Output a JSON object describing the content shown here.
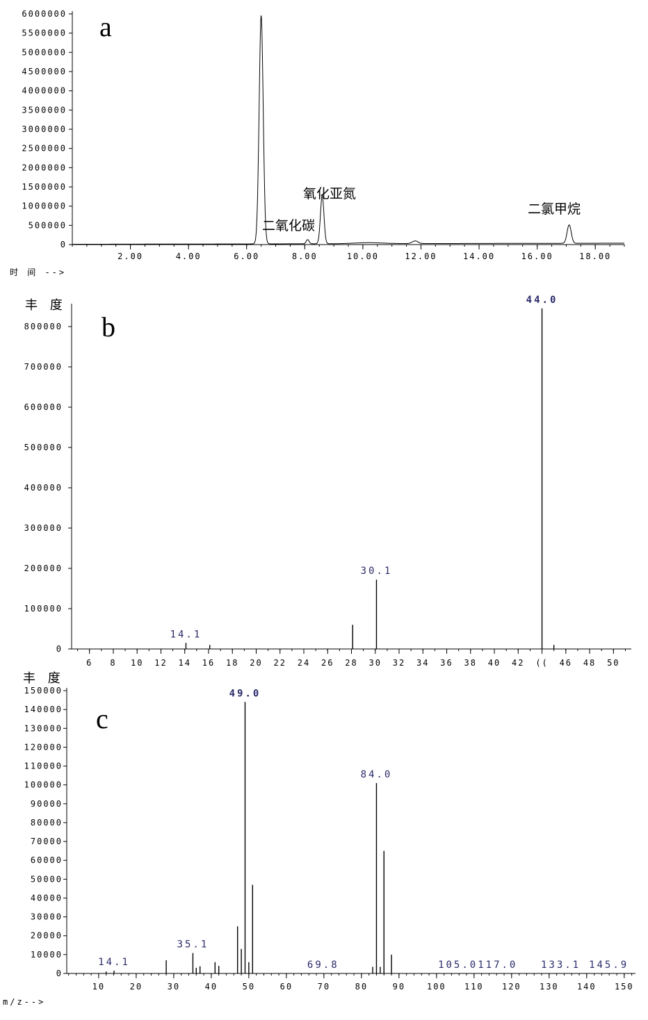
{
  "chart_data": [
    {
      "panel": "a",
      "type": "line",
      "xlabel": "时 间 -->",
      "xlim": [
        0.0,
        19.0
      ],
      "ylim": [
        0,
        6000000
      ],
      "x_ticks": [
        2,
        4,
        6,
        8,
        10,
        12,
        14,
        16,
        18
      ],
      "x_tick_labels": [
        "2.00",
        "4.00",
        "6.00",
        "8.00",
        "10.00",
        "12.00",
        "14.00",
        "16.00",
        "18.00"
      ],
      "y_ticks": [
        0,
        500000,
        1000000,
        1500000,
        2000000,
        2500000,
        3000000,
        3500000,
        4000000,
        4500000,
        5000000,
        5500000,
        6000000
      ],
      "y_tick_labels": [
        "0",
        "500000",
        "1000000",
        "1500000",
        "2000000",
        "2500000",
        "3000000",
        "3500000",
        "4000000",
        "4500000",
        "5000000",
        "5500000",
        "6000000"
      ],
      "series": [
        {
          "peaks": [
            {
              "center": 6.5,
              "height": 5950000,
              "width": 0.07
            },
            {
              "center": 8.1,
              "height": 110000,
              "width": 0.05
            },
            {
              "center": 8.6,
              "height": 1250000,
              "width": 0.06
            },
            {
              "center": 10.2,
              "height": 25000,
              "width": 0.5
            },
            {
              "center": 11.8,
              "height": 70000,
              "width": 0.1
            },
            {
              "center": 17.1,
              "height": 480000,
              "width": 0.07
            }
          ]
        }
      ],
      "annotations": [
        {
          "text": "氧化亚氮",
          "x": 8.6
        },
        {
          "text": "二氧化碳",
          "x": 8.0
        },
        {
          "text": "二氯甲烷",
          "x": 17.1
        }
      ]
    },
    {
      "panel": "b",
      "type": "bar",
      "ylabel": "丰 度",
      "xlim": [
        4.5,
        51.5
      ],
      "ylim": [
        0,
        850000
      ],
      "x_ticks": [
        6,
        8,
        10,
        12,
        14,
        16,
        18,
        20,
        22,
        24,
        26,
        28,
        30,
        32,
        34,
        36,
        38,
        40,
        42,
        44,
        46,
        48,
        50
      ],
      "x_tick_labels": [
        "6",
        "8",
        "10",
        "12",
        "14",
        "16",
        "18",
        "20",
        "22",
        "24",
        "26",
        "28",
        "30",
        "32",
        "34",
        "36",
        "38",
        "40",
        "42",
        "((",
        "46",
        "48",
        "50"
      ],
      "y_ticks": [
        0,
        100000,
        200000,
        300000,
        400000,
        500000,
        600000,
        700000,
        800000
      ],
      "y_tick_labels": [
        "0",
        "100000",
        "200000",
        "300000",
        "400000",
        "500000",
        "600000",
        "700000",
        "800000"
      ],
      "bars": [
        {
          "x": 14.1,
          "y": 15000
        },
        {
          "x": 16.1,
          "y": 10000
        },
        {
          "x": 28.1,
          "y": 60000
        },
        {
          "x": 30.1,
          "y": 172000
        },
        {
          "x": 44.0,
          "y": 845000
        },
        {
          "x": 45.0,
          "y": 10000
        }
      ],
      "peak_labels": [
        {
          "text": "14.1",
          "x": 14.1,
          "y": 15000
        },
        {
          "text": "30.1",
          "x": 30.1,
          "y": 172000
        },
        {
          "text": "44.0",
          "x": 44.0,
          "y": 845000
        }
      ]
    },
    {
      "panel": "c",
      "type": "bar",
      "ylabel": "丰 度",
      "xlabel": "m/z-->",
      "xlim": [
        1.5,
        153.0
      ],
      "ylim": [
        0,
        150000
      ],
      "x_ticks": [
        10,
        20,
        30,
        40,
        50,
        60,
        70,
        80,
        90,
        100,
        110,
        120,
        130,
        140,
        150
      ],
      "x_tick_labels": [
        "10",
        "20",
        "30",
        "40",
        "50",
        "60",
        "70",
        "80",
        "90",
        "100",
        "110",
        "120",
        "130",
        "140",
        "150"
      ],
      "y_ticks": [
        0,
        10000,
        20000,
        30000,
        40000,
        50000,
        60000,
        70000,
        80000,
        90000,
        100000,
        110000,
        120000,
        130000,
        140000,
        150000
      ],
      "y_tick_labels": [
        "0",
        "10000",
        "20000",
        "30000",
        "40000",
        "50000",
        "60000",
        "70000",
        "80000",
        "90000",
        "100000",
        "110000",
        "120000",
        "130000",
        "140000",
        "150000"
      ],
      "bars": [
        {
          "x": 12.0,
          "y": 1000
        },
        {
          "x": 14.1,
          "y": 1500
        },
        {
          "x": 28.0,
          "y": 7000
        },
        {
          "x": 35.1,
          "y": 10800
        },
        {
          "x": 36.0,
          "y": 3000
        },
        {
          "x": 37.0,
          "y": 3800
        },
        {
          "x": 41.0,
          "y": 6000
        },
        {
          "x": 42.0,
          "y": 4000
        },
        {
          "x": 47.0,
          "y": 25000
        },
        {
          "x": 48.0,
          "y": 13000
        },
        {
          "x": 49.0,
          "y": 144000
        },
        {
          "x": 50.0,
          "y": 6000
        },
        {
          "x": 51.0,
          "y": 47000
        },
        {
          "x": 83.0,
          "y": 3500
        },
        {
          "x": 84.0,
          "y": 101000
        },
        {
          "x": 85.0,
          "y": 3500
        },
        {
          "x": 86.0,
          "y": 65000
        },
        {
          "x": 88.0,
          "y": 10000
        }
      ],
      "peak_labels": [
        {
          "text": "14.1",
          "x": 14.1,
          "y": 1500
        },
        {
          "text": "35.1",
          "x": 35.1,
          "y": 10800
        },
        {
          "text": "49.0",
          "x": 49.0,
          "y": 144000
        },
        {
          "text": "69.8",
          "x": 69.8,
          "y": 0
        },
        {
          "text": "84.0",
          "x": 84.0,
          "y": 101000
        },
        {
          "text": "105.0117.0",
          "x": 111.0,
          "y": 0
        },
        {
          "text": "133.1",
          "x": 133.1,
          "y": 0
        },
        {
          "text": "145.9",
          "x": 145.9,
          "y": 0
        }
      ]
    }
  ],
  "panel_letters": [
    "a",
    "b",
    "c"
  ]
}
